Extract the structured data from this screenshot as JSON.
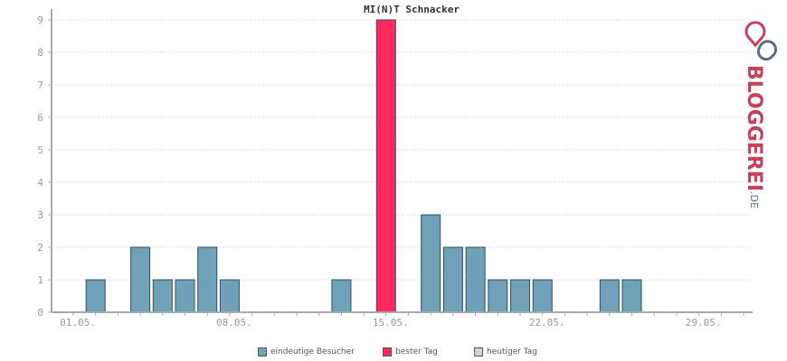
{
  "chart_data": {
    "type": "bar",
    "title": "MI(N)T Schnacker",
    "categories": [
      "01.05.",
      "02.05.",
      "03.05.",
      "04.05.",
      "05.05.",
      "06.05.",
      "07.05.",
      "08.05.",
      "09.05.",
      "10.05.",
      "11.05.",
      "12.05.",
      "13.05.",
      "14.05.",
      "15.05.",
      "16.05.",
      "17.05.",
      "18.05.",
      "19.05.",
      "20.05.",
      "21.05.",
      "22.05.",
      "23.05.",
      "24.05.",
      "25.05.",
      "26.05.",
      "27.05.",
      "28.05.",
      "29.05.",
      "30.05.",
      "31.05."
    ],
    "values": [
      0,
      1,
      0,
      2,
      1,
      1,
      2,
      1,
      0,
      0,
      0,
      0,
      1,
      0,
      9,
      0,
      3,
      2,
      2,
      1,
      1,
      1,
      0,
      0,
      1,
      1,
      0,
      0,
      0,
      0,
      0
    ],
    "best_day_index": 14,
    "xticks": [
      "01.05.",
      "08.05.",
      "15.05.",
      "22.05.",
      "29.05."
    ],
    "yticks": [
      "0",
      "1",
      "2",
      "3",
      "4",
      "5",
      "6",
      "7",
      "8",
      "9"
    ],
    "ylim": [
      0,
      9
    ],
    "colors": {
      "visitors": "#6fa1b9",
      "best": "#ff2a5a",
      "today": "#d3d3d3",
      "axis": "#aaaaaa",
      "grid": "#cccccc",
      "tick_text": "#999999"
    },
    "legend": [
      {
        "label": "eindeutige Besucher",
        "color": "#6fa1b9"
      },
      {
        "label": "bester Tag",
        "color": "#ff2a5a"
      },
      {
        "label": "heutiger Tag",
        "color": "#d3d3d3"
      }
    ]
  },
  "logo": {
    "brand": "BLOGGEREI",
    "tld": ".DE"
  }
}
